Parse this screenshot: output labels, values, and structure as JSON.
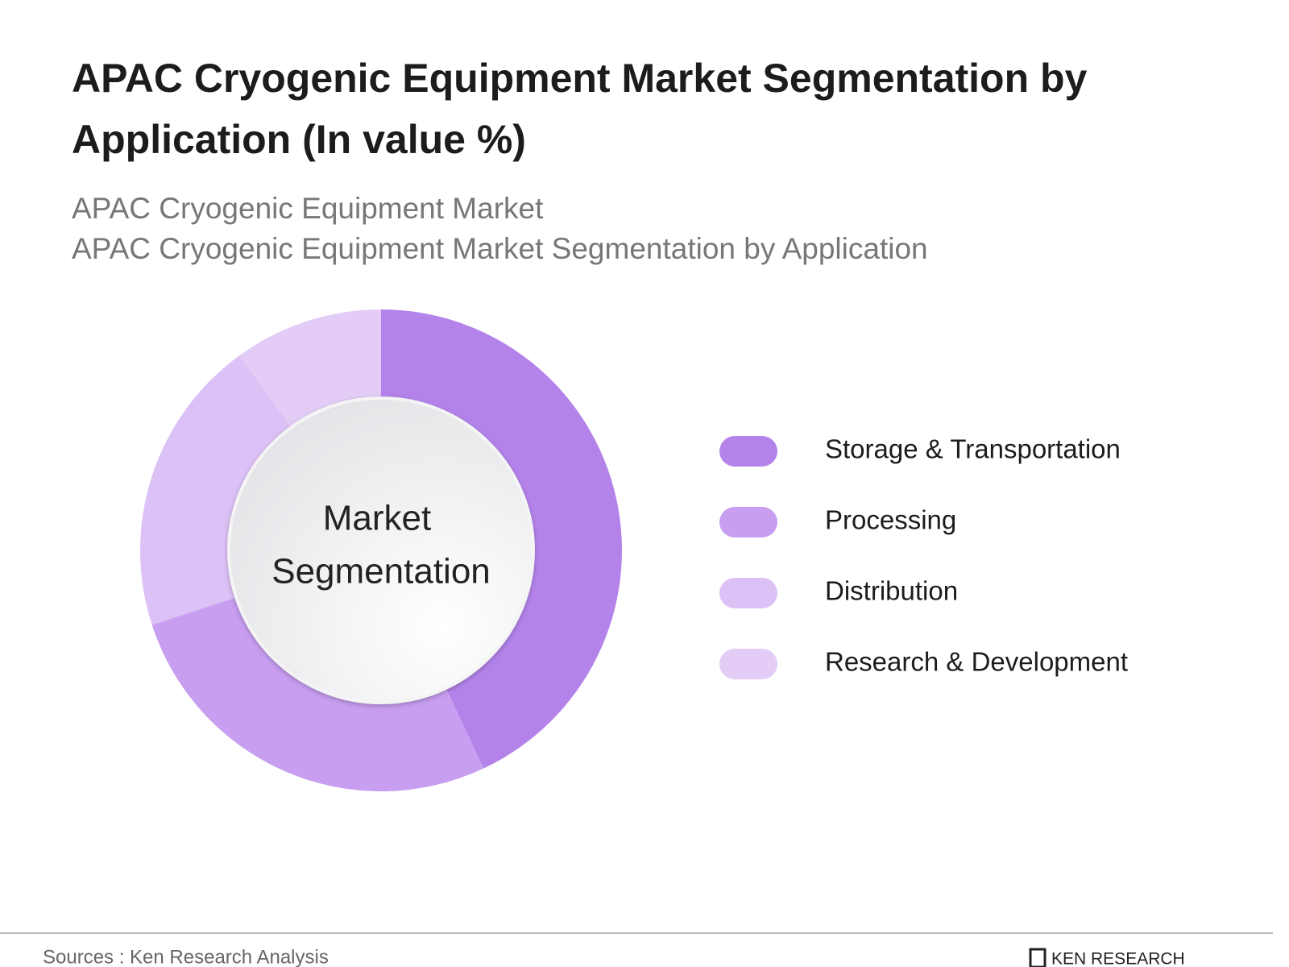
{
  "chart_data": {
    "type": "donut",
    "title": [
      "APAC Cryogenic Equipment Market Segmentation by",
      "Application (In value %)"
    ],
    "subtitle": [
      "APAC Cryogenic Equipment Market",
      "APAC Cryogenic Equipment Market Segmentation by Application"
    ],
    "center_label": [
      "Market",
      "Segmentation"
    ],
    "categories": [
      "Storage & Transportation",
      "Processing",
      "Distribution",
      "Research & Development"
    ],
    "values": [
      43,
      27,
      20,
      10
    ],
    "colors": [
      "#b383ea",
      "#c79ef0",
      "#dcc1f6",
      "#e3cdf7"
    ],
    "source": "Sources : Ken Research Analysis",
    "brand": "KEN RESEARCH"
  }
}
